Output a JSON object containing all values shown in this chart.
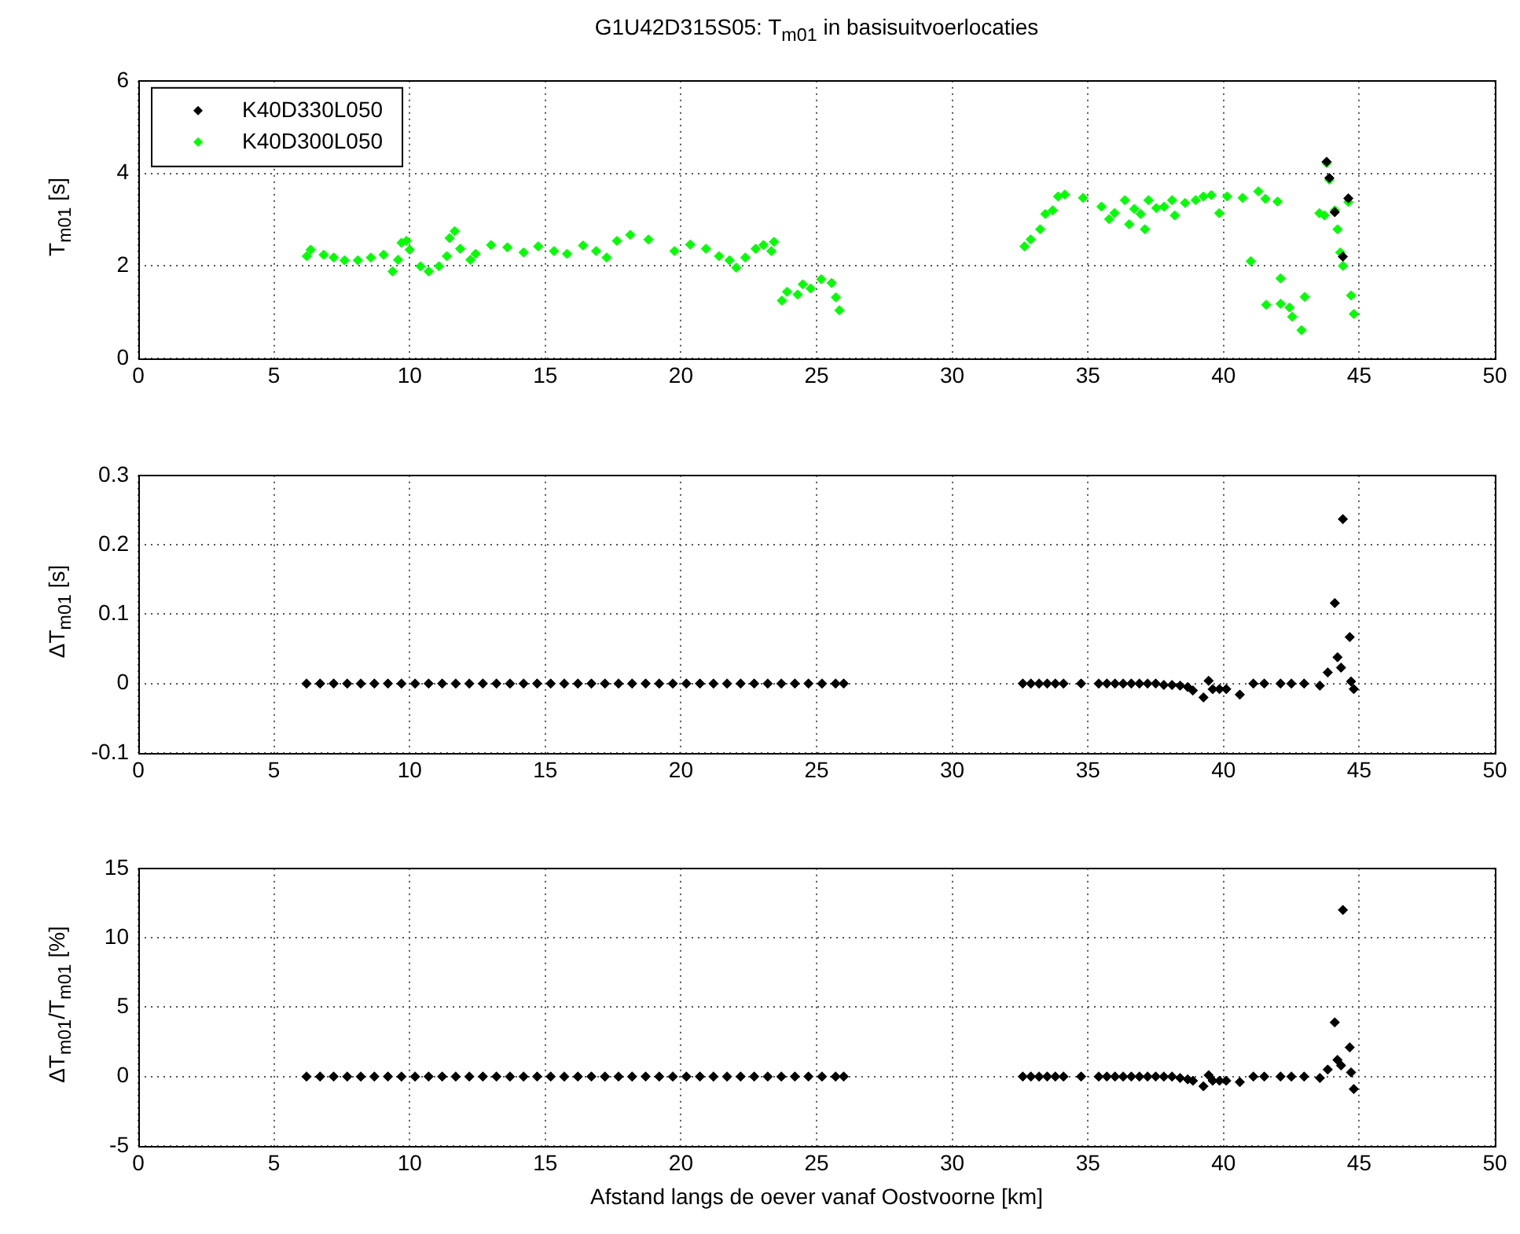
{
  "chart_data": [
    {
      "type": "scatter",
      "title": "G1U42D315S05: T$_{m01}$ in basisuitvoerlocaties",
      "ylabel": "T$_{m01}$ [s]",
      "xlim": [
        0,
        50
      ],
      "xticks": [
        0,
        5,
        10,
        15,
        20,
        25,
        30,
        35,
        40,
        45,
        50
      ],
      "ylim": [
        0,
        6
      ],
      "yticks": [
        0,
        2,
        4,
        6
      ],
      "grid": true,
      "legend": "top left",
      "marker": "diamond",
      "series": [
        {
          "name": "K40D330L050",
          "color": "#000000",
          "x": [
            43.8,
            43.9,
            44.1,
            44.4,
            44.6
          ],
          "values": [
            4.25,
            3.9,
            3.16,
            2.2,
            3.46
          ]
        },
        {
          "name": "K40D300L050",
          "color": "#00ff00",
          "x": [
            6.21,
            6.35,
            6.83,
            7.2,
            7.6,
            8.09,
            8.57,
            9.04,
            9.37,
            9.57,
            9.7,
            9.88,
            10.0,
            10.4,
            10.7,
            11.08,
            11.37,
            11.47,
            11.66,
            11.86,
            12.24,
            12.43,
            13.0,
            13.6,
            14.2,
            14.74,
            15.32,
            15.8,
            16.39,
            16.87,
            17.26,
            17.64,
            18.13,
            18.8,
            19.76,
            20.34,
            20.92,
            21.4,
            21.79,
            22.04,
            22.37,
            22.75,
            23.04,
            23.33,
            23.43,
            23.72,
            23.91,
            24.3,
            24.49,
            24.78,
            25.17,
            25.55,
            25.71,
            25.84,
            32.66,
            32.89,
            33.24,
            33.43,
            33.7,
            33.9,
            34.15,
            34.82,
            35.5,
            35.78,
            35.98,
            36.36,
            36.52,
            36.71,
            36.94,
            37.1,
            37.23,
            37.52,
            37.81,
            38.1,
            38.2,
            38.58,
            38.97,
            39.26,
            39.55,
            39.84,
            40.13,
            40.7,
            41.0,
            41.28,
            41.54,
            41.57,
            41.99,
            42.1,
            42.1,
            42.43,
            42.53,
            42.87,
            42.99,
            43.53,
            43.72,
            43.8,
            43.9,
            44.1,
            44.2,
            44.3,
            44.4,
            44.6,
            44.7,
            44.8
          ],
          "values": [
            2.21,
            2.35,
            2.24,
            2.18,
            2.12,
            2.12,
            2.18,
            2.24,
            1.88,
            2.13,
            2.5,
            2.54,
            2.35,
            1.99,
            1.88,
            1.99,
            2.21,
            2.6,
            2.75,
            2.37,
            2.13,
            2.26,
            2.45,
            2.4,
            2.29,
            2.42,
            2.32,
            2.26,
            2.44,
            2.32,
            2.18,
            2.54,
            2.67,
            2.57,
            2.32,
            2.46,
            2.37,
            2.21,
            2.12,
            1.96,
            2.18,
            2.37,
            2.45,
            2.32,
            2.52,
            1.25,
            1.44,
            1.38,
            1.6,
            1.51,
            1.71,
            1.63,
            1.32,
            1.04,
            2.42,
            2.57,
            2.79,
            3.12,
            3.2,
            3.5,
            3.54,
            3.47,
            3.28,
            3.01,
            3.14,
            3.42,
            2.9,
            3.23,
            3.12,
            2.79,
            3.42,
            3.25,
            3.28,
            3.42,
            3.09,
            3.36,
            3.42,
            3.5,
            3.53,
            3.14,
            3.5,
            3.47,
            2.1,
            3.61,
            3.45,
            1.16,
            3.39,
            1.73,
            1.18,
            1.1,
            0.9,
            0.61,
            1.33,
            3.14,
            3.09,
            4.22,
            3.86,
            3.2,
            2.79,
            2.29,
            2.0,
            3.38,
            1.36,
            0.96
          ]
        }
      ]
    },
    {
      "type": "scatter",
      "ylabel": "ΔT$_{m01}$ [s]",
      "xlim": [
        0,
        50
      ],
      "xticks": [
        0,
        5,
        10,
        15,
        20,
        25,
        30,
        35,
        40,
        45,
        50
      ],
      "ylim": [
        -0.1,
        0.3
      ],
      "yticks": [
        -0.1,
        0,
        0.1,
        0.2,
        0.3
      ],
      "grid": true,
      "marker": "diamond",
      "x": [
        6.2,
        6.7,
        7.2,
        7.7,
        8.2,
        8.7,
        9.2,
        9.7,
        10.2,
        10.7,
        11.2,
        11.7,
        12.2,
        12.7,
        13.2,
        13.7,
        14.2,
        14.7,
        15.2,
        15.7,
        16.2,
        16.7,
        17.2,
        17.7,
        18.2,
        18.7,
        19.2,
        19.7,
        20.2,
        20.7,
        21.2,
        21.7,
        22.2,
        22.7,
        23.2,
        23.7,
        24.2,
        24.7,
        25.2,
        25.7,
        26.0,
        32.6,
        32.9,
        33.2,
        33.5,
        33.8,
        34.1,
        34.75,
        35.4,
        35.7,
        36.0,
        36.3,
        36.6,
        36.9,
        37.2,
        37.5,
        37.8,
        38.1,
        38.4,
        38.68,
        38.87,
        39.26,
        39.45,
        39.6,
        39.85,
        40.1,
        40.6,
        41.1,
        41.5,
        42.1,
        42.5,
        42.97,
        43.55,
        43.84,
        44.1,
        44.2,
        44.33,
        44.4,
        44.65,
        44.7,
        44.8
      ],
      "series": [
        {
          "color": "#000000",
          "values": [
            0,
            0,
            0,
            0,
            0,
            0,
            0,
            0,
            0,
            0,
            0,
            0,
            0,
            0,
            0,
            0,
            0,
            0,
            0,
            0,
            0,
            0,
            0,
            0,
            0,
            0,
            0,
            0,
            0,
            0,
            0,
            0,
            0,
            0,
            0,
            0,
            0,
            0,
            0,
            0,
            0,
            0,
            0,
            0,
            0,
            0,
            0,
            0,
            0,
            0,
            0,
            0,
            0,
            0,
            0,
            0,
            -0.002,
            -0.002,
            -0.003,
            -0.005,
            -0.01,
            -0.02,
            0.004,
            -0.008,
            -0.008,
            -0.008,
            -0.016,
            0,
            0,
            0,
            0,
            0,
            -0.003,
            0.016,
            0.116,
            0.038,
            0.023,
            0.237,
            0.067,
            0.003,
            -0.008
          ]
        }
      ]
    },
    {
      "type": "scatter",
      "xlabel": "Afstand langs de oever vanaf Oostvoorne [km]",
      "ylabel": "ΔT$_{m01}$/T$_{m01}$ [%]",
      "xlim": [
        0,
        50
      ],
      "xticks": [
        0,
        5,
        10,
        15,
        20,
        25,
        30,
        35,
        40,
        45,
        50
      ],
      "ylim": [
        -5,
        15
      ],
      "yticks": [
        -5,
        0,
        5,
        10,
        15
      ],
      "grid": true,
      "marker": "diamond",
      "x": [
        6.2,
        6.7,
        7.2,
        7.7,
        8.2,
        8.7,
        9.2,
        9.7,
        10.2,
        10.7,
        11.2,
        11.7,
        12.2,
        12.7,
        13.2,
        13.7,
        14.2,
        14.7,
        15.2,
        15.7,
        16.2,
        16.7,
        17.2,
        17.7,
        18.2,
        18.7,
        19.2,
        19.7,
        20.2,
        20.7,
        21.2,
        21.7,
        22.2,
        22.7,
        23.2,
        23.7,
        24.2,
        24.7,
        25.2,
        25.7,
        26.0,
        32.6,
        32.9,
        33.2,
        33.5,
        33.8,
        34.1,
        34.75,
        35.4,
        35.7,
        36.0,
        36.3,
        36.6,
        36.9,
        37.2,
        37.5,
        37.8,
        38.1,
        38.4,
        38.68,
        38.87,
        39.26,
        39.45,
        39.6,
        39.85,
        40.1,
        40.6,
        41.1,
        41.5,
        42.1,
        42.5,
        42.97,
        43.55,
        43.84,
        44.1,
        44.2,
        44.33,
        44.4,
        44.65,
        44.7,
        44.8
      ],
      "series": [
        {
          "color": "#000000",
          "values": [
            0,
            0,
            0,
            0,
            0,
            0,
            0,
            0,
            0,
            0,
            0,
            0,
            0,
            0,
            0,
            0,
            0,
            0,
            0,
            0,
            0,
            0,
            0,
            0,
            0,
            0,
            0,
            0,
            0,
            0,
            0,
            0,
            0,
            0,
            0,
            0,
            0,
            0,
            0,
            0,
            0,
            0,
            0,
            0,
            0,
            0,
            0,
            0,
            0,
            0,
            0,
            0,
            0,
            0,
            0,
            0,
            0,
            0,
            -0.1,
            -0.2,
            -0.3,
            -0.7,
            0.1,
            -0.3,
            -0.3,
            -0.3,
            -0.4,
            0,
            0,
            0,
            0,
            0,
            -0.1,
            0.5,
            3.9,
            1.2,
            0.8,
            12,
            2.1,
            0.3,
            -0.9
          ]
        }
      ]
    }
  ]
}
